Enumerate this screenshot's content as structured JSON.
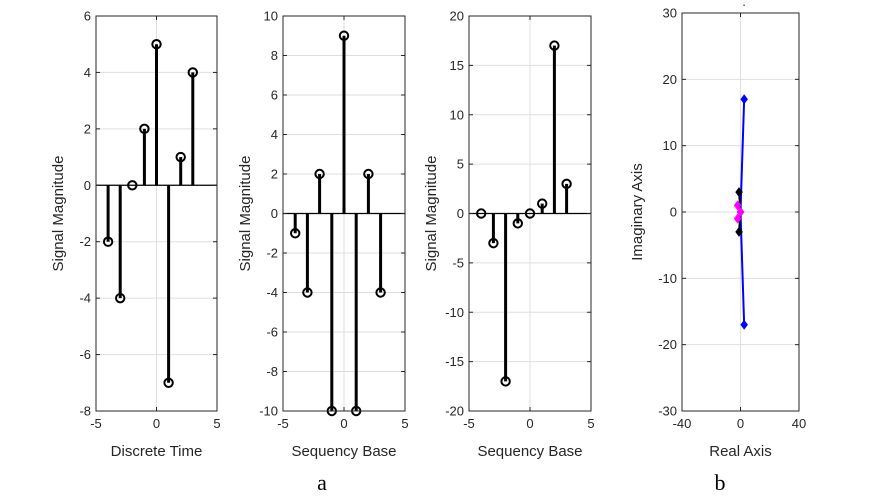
{
  "chart_data": [
    {
      "type": "stem",
      "xlabel": "Discrete Time",
      "ylabel": "Signal Magnitude",
      "xlim": [
        -5,
        5
      ],
      "ylim": [
        -8,
        6
      ],
      "xticks": [
        -5,
        0,
        5
      ],
      "yticks": [
        -8,
        -6,
        -4,
        -2,
        0,
        2,
        4,
        6
      ],
      "grid": true,
      "x": [
        -4,
        -3,
        -2,
        -1,
        0,
        1,
        2,
        3
      ],
      "values": [
        -2,
        -4,
        0,
        2,
        5,
        -7,
        1,
        4
      ]
    },
    {
      "type": "stem",
      "xlabel": "Sequency Base",
      "ylabel": "Signal Magnitude",
      "xlim": [
        -5,
        5
      ],
      "ylim": [
        -10,
        10
      ],
      "xticks": [
        -5,
        0,
        5
      ],
      "yticks": [
        -10,
        -8,
        -6,
        -4,
        -2,
        0,
        2,
        4,
        6,
        8,
        10
      ],
      "grid": true,
      "x": [
        -4,
        -3,
        -2,
        -1,
        0,
        1,
        2,
        3
      ],
      "values": [
        -1,
        -4,
        2,
        -10,
        9,
        -10,
        2,
        -4
      ]
    },
    {
      "type": "stem",
      "xlabel": "Sequency Base",
      "ylabel": "Signal Magnitude",
      "xlim": [
        -5,
        5
      ],
      "ylim": [
        -20,
        20
      ],
      "xticks": [
        -5,
        0,
        5
      ],
      "yticks": [
        -20,
        -15,
        -10,
        -5,
        0,
        5,
        10,
        15,
        20
      ],
      "grid": true,
      "x": [
        -4,
        -3,
        -2,
        -1,
        0,
        1,
        2,
        3
      ],
      "values": [
        0,
        -3,
        -17,
        -1,
        0,
        1,
        17,
        3
      ]
    },
    {
      "type": "scatter",
      "xlabel": "Real Axis",
      "ylabel": "Imaginary Axis",
      "xlim": [
        -40,
        40
      ],
      "ylim": [
        -30,
        30
      ],
      "xticks": [
        -40,
        0,
        40
      ],
      "yticks": [
        -30,
        -20,
        -10,
        0,
        10,
        20,
        30
      ],
      "grid": true,
      "series": [
        {
          "color": "#0000ff",
          "marker": "diamond",
          "line": true,
          "points": [
            [
              2.5,
              17
            ],
            [
              0,
              0
            ],
            [
              2.5,
              -17
            ]
          ]
        },
        {
          "color": "#000000",
          "marker": "diamond",
          "line": true,
          "points": [
            [
              -1,
              3
            ],
            [
              0,
              0
            ],
            [
              -1,
              -3
            ]
          ]
        },
        {
          "color": "#ff00ff",
          "marker": "diamond",
          "line": true,
          "points": [
            [
              -2,
              1
            ],
            [
              0,
              0
            ],
            [
              -2,
              -1
            ]
          ]
        }
      ]
    }
  ],
  "captions": {
    "a": "a",
    "b": "b"
  },
  "top_mark": "."
}
